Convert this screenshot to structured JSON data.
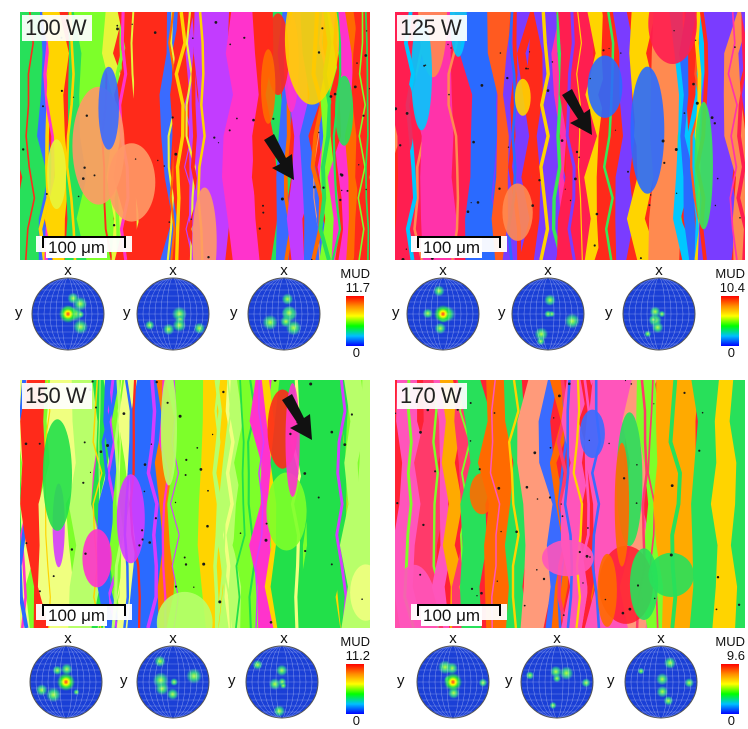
{
  "panels": [
    {
      "label": "100 W",
      "scale": "100 μm",
      "arrow": true,
      "pf_axes": {
        "x": "x",
        "y": "y"
      },
      "mud_title": "MUD",
      "mud_max": "11.7",
      "mud_min": "0",
      "palette": [
        "#ff2a1a",
        "#ff6a00",
        "#ffd400",
        "#7dff2a",
        "#27e05a",
        "#ff33cc",
        "#c23cff",
        "#3a6bff",
        "#ff9966",
        "#e8f53b"
      ]
    },
    {
      "label": "125 W",
      "scale": "100 μm",
      "arrow": true,
      "pf_axes": {
        "x": "x",
        "y": "y"
      },
      "mud_title": "MUD",
      "mud_max": "10.4",
      "mud_min": "0",
      "palette": [
        "#ff2a1a",
        "#ff5a20",
        "#ffd400",
        "#38e858",
        "#2a6aff",
        "#ff33aa",
        "#7a3cff",
        "#ff8a50",
        "#ff1e50",
        "#00c8ff"
      ]
    },
    {
      "label": "150 W",
      "scale": "100 μm",
      "arrow": true,
      "pf_axes": {
        "x": "x",
        "y": "y"
      },
      "mud_title": "MUD",
      "mud_max": "11.2",
      "mud_min": "0",
      "palette": [
        "#7dff2a",
        "#22e04a",
        "#ff2a1a",
        "#ff33cc",
        "#d43cff",
        "#ffd400",
        "#ff7a00",
        "#b8ff6a",
        "#2a6aff",
        "#f0ff80"
      ]
    },
    {
      "label": "170 W",
      "scale": "100 μm",
      "arrow": false,
      "pf_axes": {
        "x": "x",
        "y": "y"
      },
      "mud_title": "MUD",
      "mud_max": "9.6",
      "mud_min": "0",
      "palette": [
        "#ff2233",
        "#ff3a6a",
        "#ff6a00",
        "#ffaa00",
        "#ffd400",
        "#7dff2a",
        "#28e05a",
        "#ff55bb",
        "#3a6bff",
        "#ff9a7a"
      ]
    }
  ]
}
